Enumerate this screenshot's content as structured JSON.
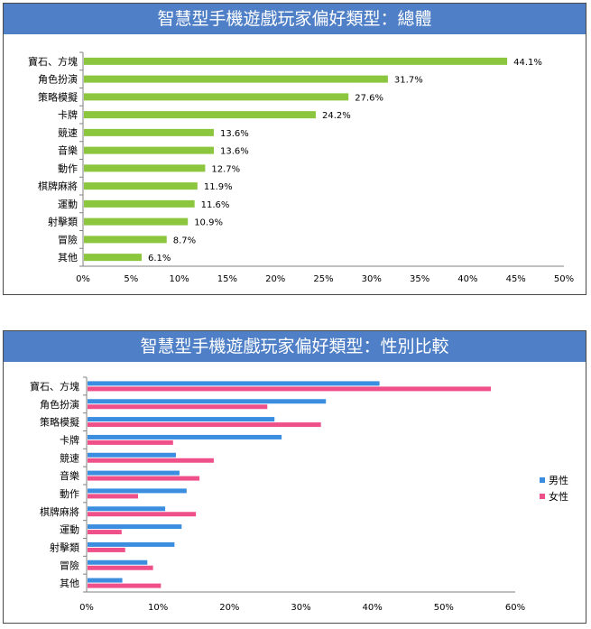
{
  "chart_data": [
    {
      "type": "bar",
      "orientation": "horizontal",
      "title": "智慧型手機遊戲玩家偏好類型：總體",
      "categories": [
        "寶石、方塊",
        "角色扮演",
        "策略模擬",
        "卡牌",
        "競速",
        "音樂",
        "動作",
        "棋牌麻將",
        "運動",
        "射擊類",
        "冒險",
        "其他"
      ],
      "values": [
        44.1,
        31.7,
        27.6,
        24.2,
        13.6,
        13.6,
        12.7,
        11.9,
        11.6,
        10.9,
        8.7,
        6.1
      ],
      "value_labels": [
        "44.1%",
        "31.7%",
        "27.6%",
        "24.2%",
        "13.6%",
        "13.6%",
        "12.7%",
        "11.9%",
        "11.6%",
        "10.9%",
        "8.7%",
        "6.1%"
      ],
      "xlim": [
        0,
        50
      ],
      "xticks": [
        "0%",
        "5%",
        "10%",
        "15%",
        "20%",
        "25%",
        "30%",
        "35%",
        "40%",
        "45%",
        "50%"
      ],
      "color": "#8cc63f",
      "grid": false,
      "legend": "none"
    },
    {
      "type": "bar",
      "orientation": "horizontal",
      "title": "智慧型手機遊戲玩家偏好類型：性別比較",
      "categories": [
        "寶石、方塊",
        "角色扮演",
        "策略模擬",
        "卡牌",
        "競速",
        "音樂",
        "動作",
        "棋牌麻將",
        "運動",
        "射擊類",
        "冒險",
        "其他"
      ],
      "series": [
        {
          "name": "男性",
          "color": "#3b8de0",
          "values": [
            41,
            33.5,
            26.3,
            27.3,
            12.5,
            13,
            14,
            11,
            13.3,
            12.3,
            8.5,
            5
          ]
        },
        {
          "name": "女性",
          "color": "#f0508a",
          "values": [
            56.6,
            25.3,
            32.8,
            12.1,
            17.8,
            15.8,
            7.2,
            15.3,
            4.9,
            5.4,
            9.3,
            10.4
          ]
        }
      ],
      "xlim": [
        0,
        60
      ],
      "xticks": [
        "0%",
        "10%",
        "20%",
        "30%",
        "40%",
        "50%",
        "60%"
      ],
      "grid": false,
      "legend": "right"
    }
  ]
}
